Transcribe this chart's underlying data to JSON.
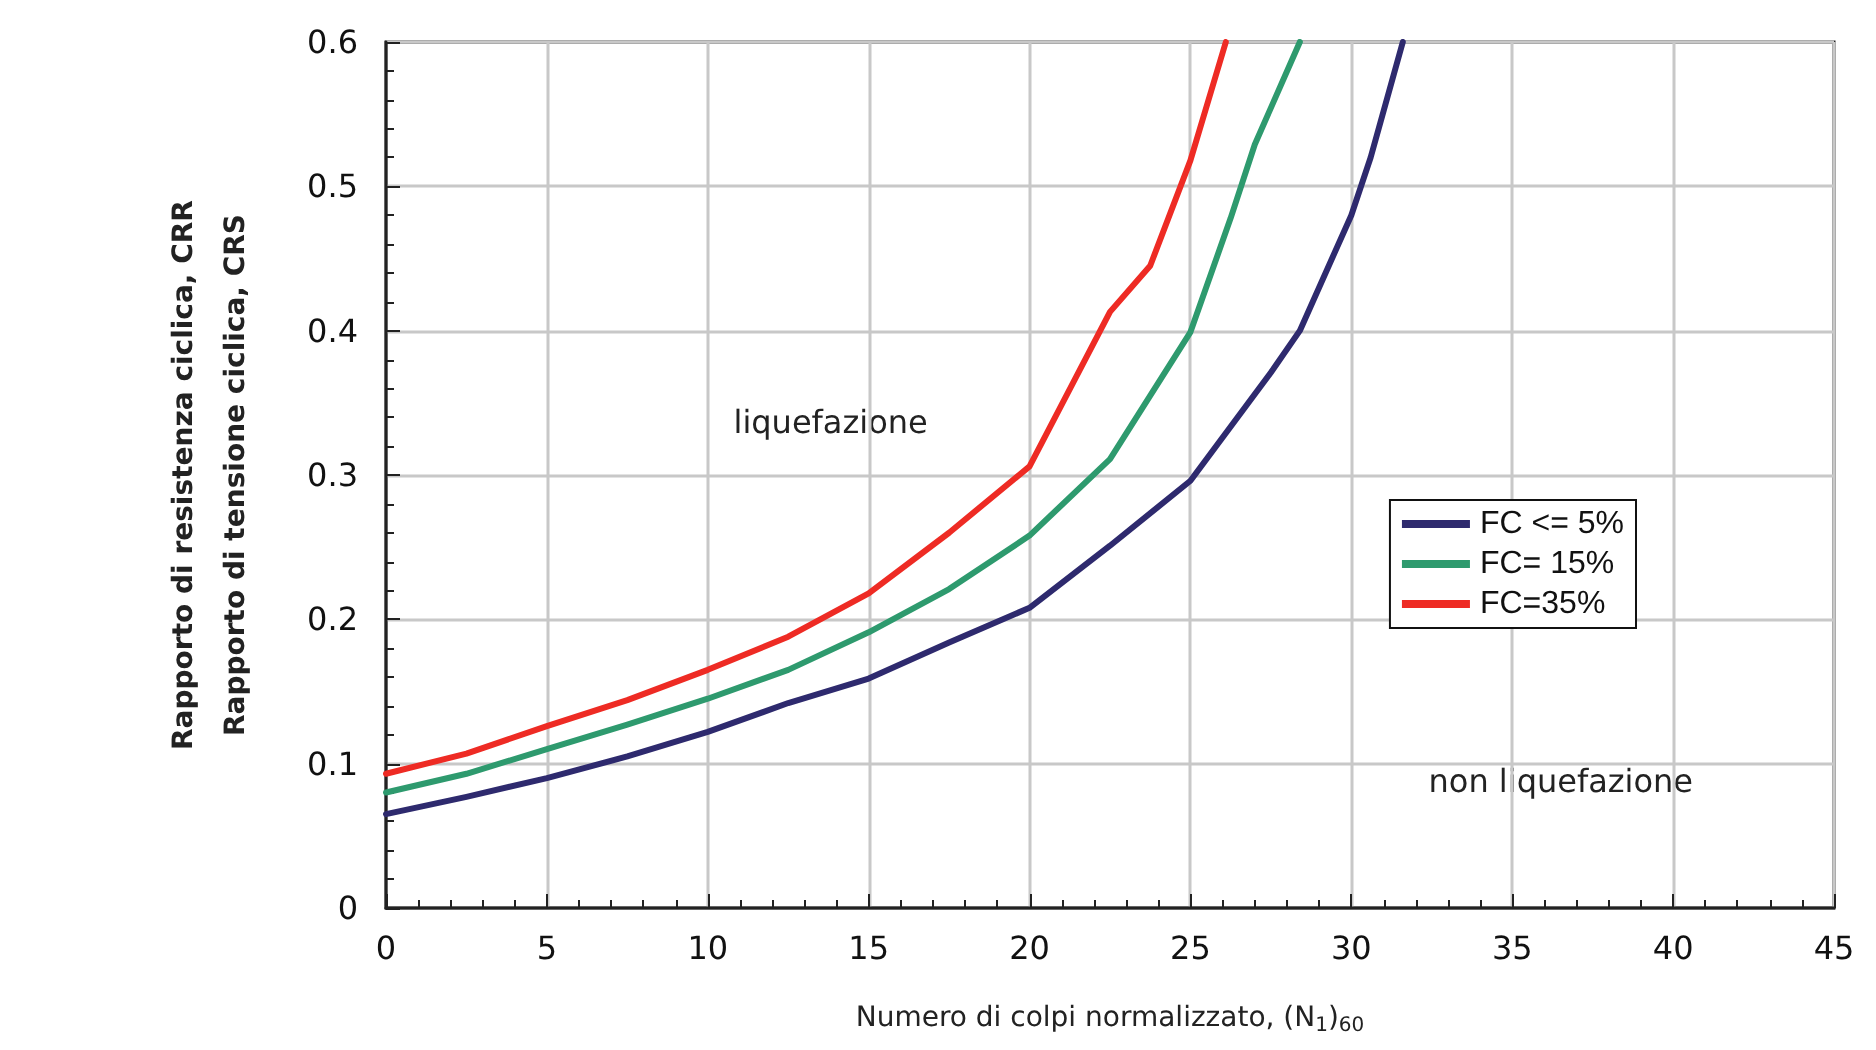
{
  "chart_data": {
    "type": "line",
    "xlabel": "Numero di colpi normalizzato, (N$_{1}$)$_{60}$",
    "ylabel": "Rapporto di resistenza ciclica, CRR\nRapporto di tensione ciclica, CRS",
    "xlim": [
      0,
      45
    ],
    "xticks": [
      0,
      5,
      10,
      15,
      20,
      25,
      30,
      35,
      40,
      45
    ],
    "ylim": [
      0,
      0.6
    ],
    "yticks": [
      0,
      0.1,
      0.2,
      0.3,
      0.4,
      0.5,
      0.6
    ],
    "grid": true,
    "legend": "right",
    "marker": "none",
    "line_style": "solid",
    "series": [
      {
        "name": "FC <= 5%",
        "color": "#2e2a6e",
        "x": [
          0,
          2.5,
          5,
          7.5,
          10,
          12.5,
          15,
          17.5,
          20,
          22.5,
          25,
          27.5,
          28.4,
          30,
          30.6,
          31.6
        ],
        "values": [
          0.065,
          0.077,
          0.09,
          0.105,
          0.122,
          0.142,
          0.159,
          0.184,
          0.208,
          0.251,
          0.296,
          0.371,
          0.4,
          0.48,
          0.52,
          0.6
        ]
      },
      {
        "name": "FC= 15%",
        "color": "#2e9a6e",
        "x": [
          0,
          2.5,
          5,
          7.5,
          10,
          12.5,
          15,
          17.5,
          20,
          22.5,
          25,
          26.25,
          27,
          28.4
        ],
        "values": [
          0.08,
          0.093,
          0.11,
          0.127,
          0.145,
          0.165,
          0.191,
          0.221,
          0.258,
          0.311,
          0.399,
          0.478,
          0.529,
          0.6
        ]
      },
      {
        "name": "FC=35%",
        "color": "#ee2b24",
        "x": [
          0,
          2.5,
          5,
          7.5,
          10,
          12.5,
          15,
          17.5,
          20,
          22.5,
          23.75,
          25,
          26.1
        ],
        "values": [
          0.093,
          0.107,
          0.126,
          0.144,
          0.165,
          0.188,
          0.218,
          0.26,
          0.306,
          0.413,
          0.445,
          0.518,
          0.6
        ]
      }
    ],
    "annotations": [
      "liquefazione",
      "non liquefazione"
    ]
  }
}
